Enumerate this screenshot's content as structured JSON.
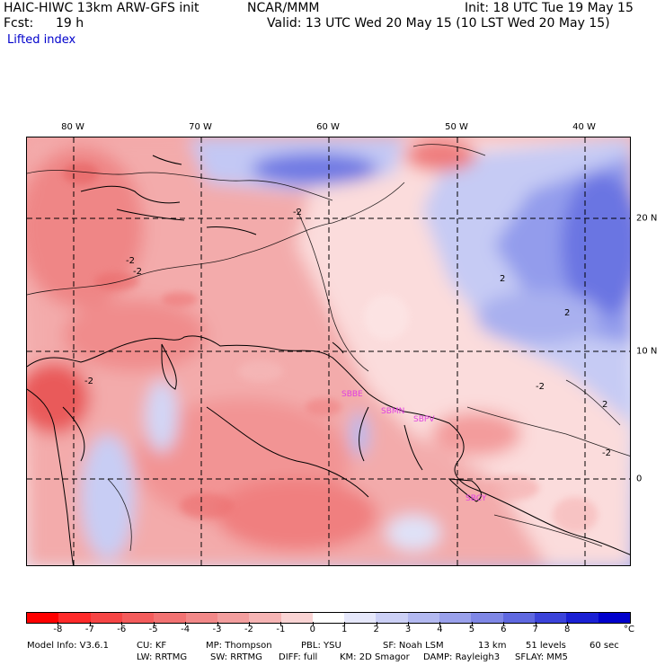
{
  "header": {
    "model": "HAIC-HIWC 13km ARW-GFS init",
    "org": "NCAR/MMM",
    "init": "Init: 18 UTC Tue 19 May 15",
    "fcst_label": "Fcst:",
    "fcst_value": "19 h",
    "valid": "Valid: 13 UTC Wed 20 May 15 (10 LST Wed 20 May 15)",
    "field": "Lifted index"
  },
  "map": {
    "lon_labels": [
      "80 W",
      "70 W",
      "60 W",
      "50 W",
      "40 W"
    ],
    "lat_labels": [
      "20 N",
      "10 N",
      "0"
    ],
    "contour_labels": [
      "-2",
      "-2",
      "-2",
      "-2",
      "-2",
      "-2",
      "2",
      "2",
      "2"
    ],
    "station_labels": [
      "SBBE",
      "SBMN",
      "SBPV",
      "SBCY"
    ],
    "colors": {
      "station": "#e040e0",
      "gridline": "#000000",
      "coast": "#000000"
    }
  },
  "colorbar": {
    "labels": [
      "-8",
      "-7",
      "-6",
      "-5",
      "-4",
      "-3",
      "-2",
      "-1",
      "0",
      "1",
      "2",
      "3",
      "4",
      "5",
      "6",
      "7",
      "8"
    ],
    "unit": "°C",
    "colors": [
      "#ff0000",
      "#ff2a2a",
      "#f64545",
      "#f45c5c",
      "#f27272",
      "#f28888",
      "#f39e9e",
      "#f6b4b4",
      "#fad4d4",
      "#ffffff",
      "#e6e8fb",
      "#ccd0f6",
      "#b3b9f1",
      "#9aa1ec",
      "#7f87e6",
      "#5f68e0",
      "#3b43da",
      "#1a20d4",
      "#0000cc"
    ]
  },
  "footer": {
    "line1": [
      "Model Info: V3.6.1",
      "CU: KF",
      "MP: Thompson",
      "PBL: YSU",
      "SF: Noah LSM",
      "13 km",
      "51 levels",
      "60 sec"
    ],
    "line2": [
      "LW: RRTMG",
      "SW: RRTMG",
      "DIFF: full",
      "KM: 2D Smagor",
      "DAMP: Rayleigh3",
      "SFLAY: MM5"
    ]
  }
}
